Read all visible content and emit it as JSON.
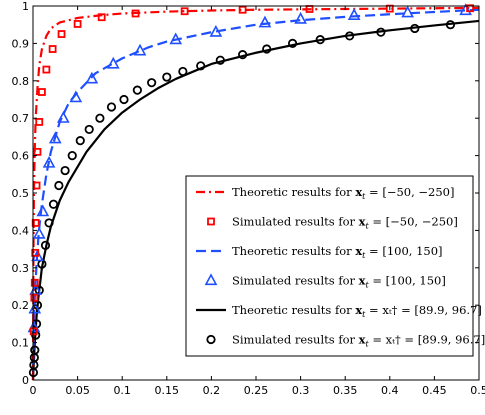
{
  "chart_data": {
    "type": "line",
    "title": "",
    "xlabel": "",
    "ylabel": "",
    "xlim": [
      0,
      0.5
    ],
    "ylim": [
      0,
      1
    ],
    "x_ticks": [
      0,
      0.05,
      0.1,
      0.15,
      0.2,
      0.25,
      0.3,
      0.35,
      0.4,
      0.45,
      0.5
    ],
    "x_tick_labels": [
      "0",
      "0.05",
      "0.1",
      "0.15",
      "0.2",
      "0.25",
      "0.3",
      "0.35",
      "0.4",
      "0.45",
      "0.5"
    ],
    "y_ticks": [
      0,
      0.1,
      0.2,
      0.3,
      0.4,
      0.5,
      0.6,
      0.7,
      0.8,
      0.9,
      1
    ],
    "y_tick_labels": [
      "0",
      "0.1",
      "0.2",
      "0.3",
      "0.4",
      "0.5",
      "0.6",
      "0.7",
      "0.8",
      "0.9",
      "1"
    ],
    "grid": false,
    "legend_position": "lower-right",
    "colors": {
      "red": "#ff0000",
      "blue": "#1f4fff",
      "black": "#000000"
    },
    "series": [
      {
        "name": "Theoretic results for x_t = [−50, −250]",
        "legend_main": "Theoretic results for ",
        "legend_math": "x",
        "legend_sub": "t",
        "legend_dagger": "",
        "legend_rest": " = [−50, −250]",
        "style": "dashdot",
        "color": "#ff0000",
        "marker": "none",
        "x": [
          0,
          0.0005,
          0.001,
          0.002,
          0.003,
          0.005,
          0.007,
          0.01,
          0.015,
          0.02,
          0.03,
          0.05,
          0.075,
          0.1,
          0.15,
          0.2,
          0.25,
          0.3,
          0.35,
          0.4,
          0.45,
          0.5
        ],
        "values": [
          0,
          0.33,
          0.5,
          0.62,
          0.7,
          0.78,
          0.84,
          0.885,
          0.92,
          0.94,
          0.956,
          0.968,
          0.975,
          0.98,
          0.985,
          0.988,
          0.99,
          0.991,
          0.992,
          0.993,
          0.994,
          0.995
        ]
      },
      {
        "name": "Simulated results for x_t = [−50, −250]",
        "legend_main": "Simulated results for ",
        "legend_math": "x",
        "legend_sub": "t",
        "legend_dagger": "",
        "legend_rest": " = [−50, −250]",
        "style": "none",
        "color": "#ff0000",
        "marker": "square",
        "x": [
          0.0008,
          0.0015,
          0.002,
          0.0025,
          0.003,
          0.004,
          0.005,
          0.007,
          0.01,
          0.015,
          0.022,
          0.032,
          0.05,
          0.077,
          0.115,
          0.17,
          0.235,
          0.31,
          0.4,
          0.49
        ],
        "values": [
          0.13,
          0.22,
          0.26,
          0.34,
          0.42,
          0.52,
          0.61,
          0.69,
          0.77,
          0.83,
          0.885,
          0.925,
          0.952,
          0.97,
          0.98,
          0.986,
          0.99,
          0.992,
          0.993,
          0.994
        ]
      },
      {
        "name": "Theoretic results for x_t = [100, 150]",
        "legend_main": "Theoretic results for ",
        "legend_math": "x",
        "legend_sub": "t",
        "legend_dagger": "",
        "legend_rest": " = [100, 150]",
        "style": "dashed",
        "color": "#1f4fff",
        "marker": "none",
        "x": [
          0,
          0.001,
          0.002,
          0.004,
          0.006,
          0.008,
          0.01,
          0.015,
          0.02,
          0.03,
          0.04,
          0.05,
          0.07,
          0.1,
          0.13,
          0.15,
          0.2,
          0.25,
          0.3,
          0.35,
          0.4,
          0.45,
          0.5
        ],
        "values": [
          0,
          0.15,
          0.22,
          0.31,
          0.38,
          0.43,
          0.47,
          0.55,
          0.61,
          0.69,
          0.74,
          0.77,
          0.82,
          0.86,
          0.89,
          0.905,
          0.93,
          0.95,
          0.962,
          0.971,
          0.978,
          0.984,
          0.99
        ]
      },
      {
        "name": "Simulated results for x_t = [100, 150]",
        "legend_main": "Simulated results for ",
        "legend_math": "x",
        "legend_sub": "t",
        "legend_dagger": "",
        "legend_rest": " = [100, 150]",
        "style": "none",
        "color": "#1f4fff",
        "marker": "triangle",
        "x": [
          0.001,
          0.002,
          0.003,
          0.005,
          0.007,
          0.011,
          0.018,
          0.025,
          0.034,
          0.048,
          0.066,
          0.09,
          0.12,
          0.16,
          0.205,
          0.26,
          0.3,
          0.36,
          0.42,
          0.485
        ],
        "values": [
          0.14,
          0.19,
          0.24,
          0.33,
          0.39,
          0.45,
          0.58,
          0.645,
          0.7,
          0.755,
          0.805,
          0.845,
          0.88,
          0.91,
          0.93,
          0.955,
          0.965,
          0.975,
          0.982,
          0.988
        ]
      },
      {
        "name": "Theoretic results for x_t = x_t† = [89.9, 96.7]",
        "legend_main": "Theoretic results for ",
        "legend_math": "x",
        "legend_sub": "t",
        "legend_dagger": " = xₜ†",
        "legend_rest": " = [89.9, 96.7]",
        "style": "solid",
        "color": "#000000",
        "marker": "none",
        "x": [
          0,
          0.001,
          0.002,
          0.004,
          0.006,
          0.008,
          0.01,
          0.015,
          0.02,
          0.03,
          0.04,
          0.05,
          0.06,
          0.08,
          0.1,
          0.12,
          0.14,
          0.16,
          0.18,
          0.2,
          0.25,
          0.3,
          0.35,
          0.4,
          0.45,
          0.5
        ],
        "values": [
          0,
          0.05,
          0.1,
          0.17,
          0.22,
          0.26,
          0.3,
          0.36,
          0.41,
          0.48,
          0.53,
          0.57,
          0.61,
          0.67,
          0.715,
          0.75,
          0.78,
          0.805,
          0.825,
          0.845,
          0.875,
          0.9,
          0.92,
          0.935,
          0.948,
          0.96
        ]
      },
      {
        "name": "Simulated results for x_t = x_t† = [89.9, 96.7]",
        "legend_main": "Simulated results for ",
        "legend_math": "x",
        "legend_sub": "t",
        "legend_dagger": " = xₜ†",
        "legend_rest": " = [89.9, 96.7]",
        "style": "none",
        "color": "#000000",
        "marker": "circle",
        "x": [
          0.0005,
          0.001,
          0.0015,
          0.002,
          0.003,
          0.004,
          0.005,
          0.007,
          0.01,
          0.014,
          0.018,
          0.023,
          0.029,
          0.036,
          0.044,
          0.053,
          0.063,
          0.075,
          0.088,
          0.102,
          0.117,
          0.133,
          0.15,
          0.168,
          0.188,
          0.21,
          0.235,
          0.262,
          0.291,
          0.322,
          0.355,
          0.39,
          0.428,
          0.468
        ],
        "values": [
          0.02,
          0.04,
          0.06,
          0.08,
          0.12,
          0.15,
          0.2,
          0.24,
          0.31,
          0.36,
          0.42,
          0.47,
          0.52,
          0.56,
          0.6,
          0.64,
          0.67,
          0.7,
          0.73,
          0.75,
          0.775,
          0.795,
          0.81,
          0.825,
          0.84,
          0.855,
          0.87,
          0.885,
          0.9,
          0.91,
          0.92,
          0.93,
          0.94,
          0.95
        ]
      }
    ]
  }
}
